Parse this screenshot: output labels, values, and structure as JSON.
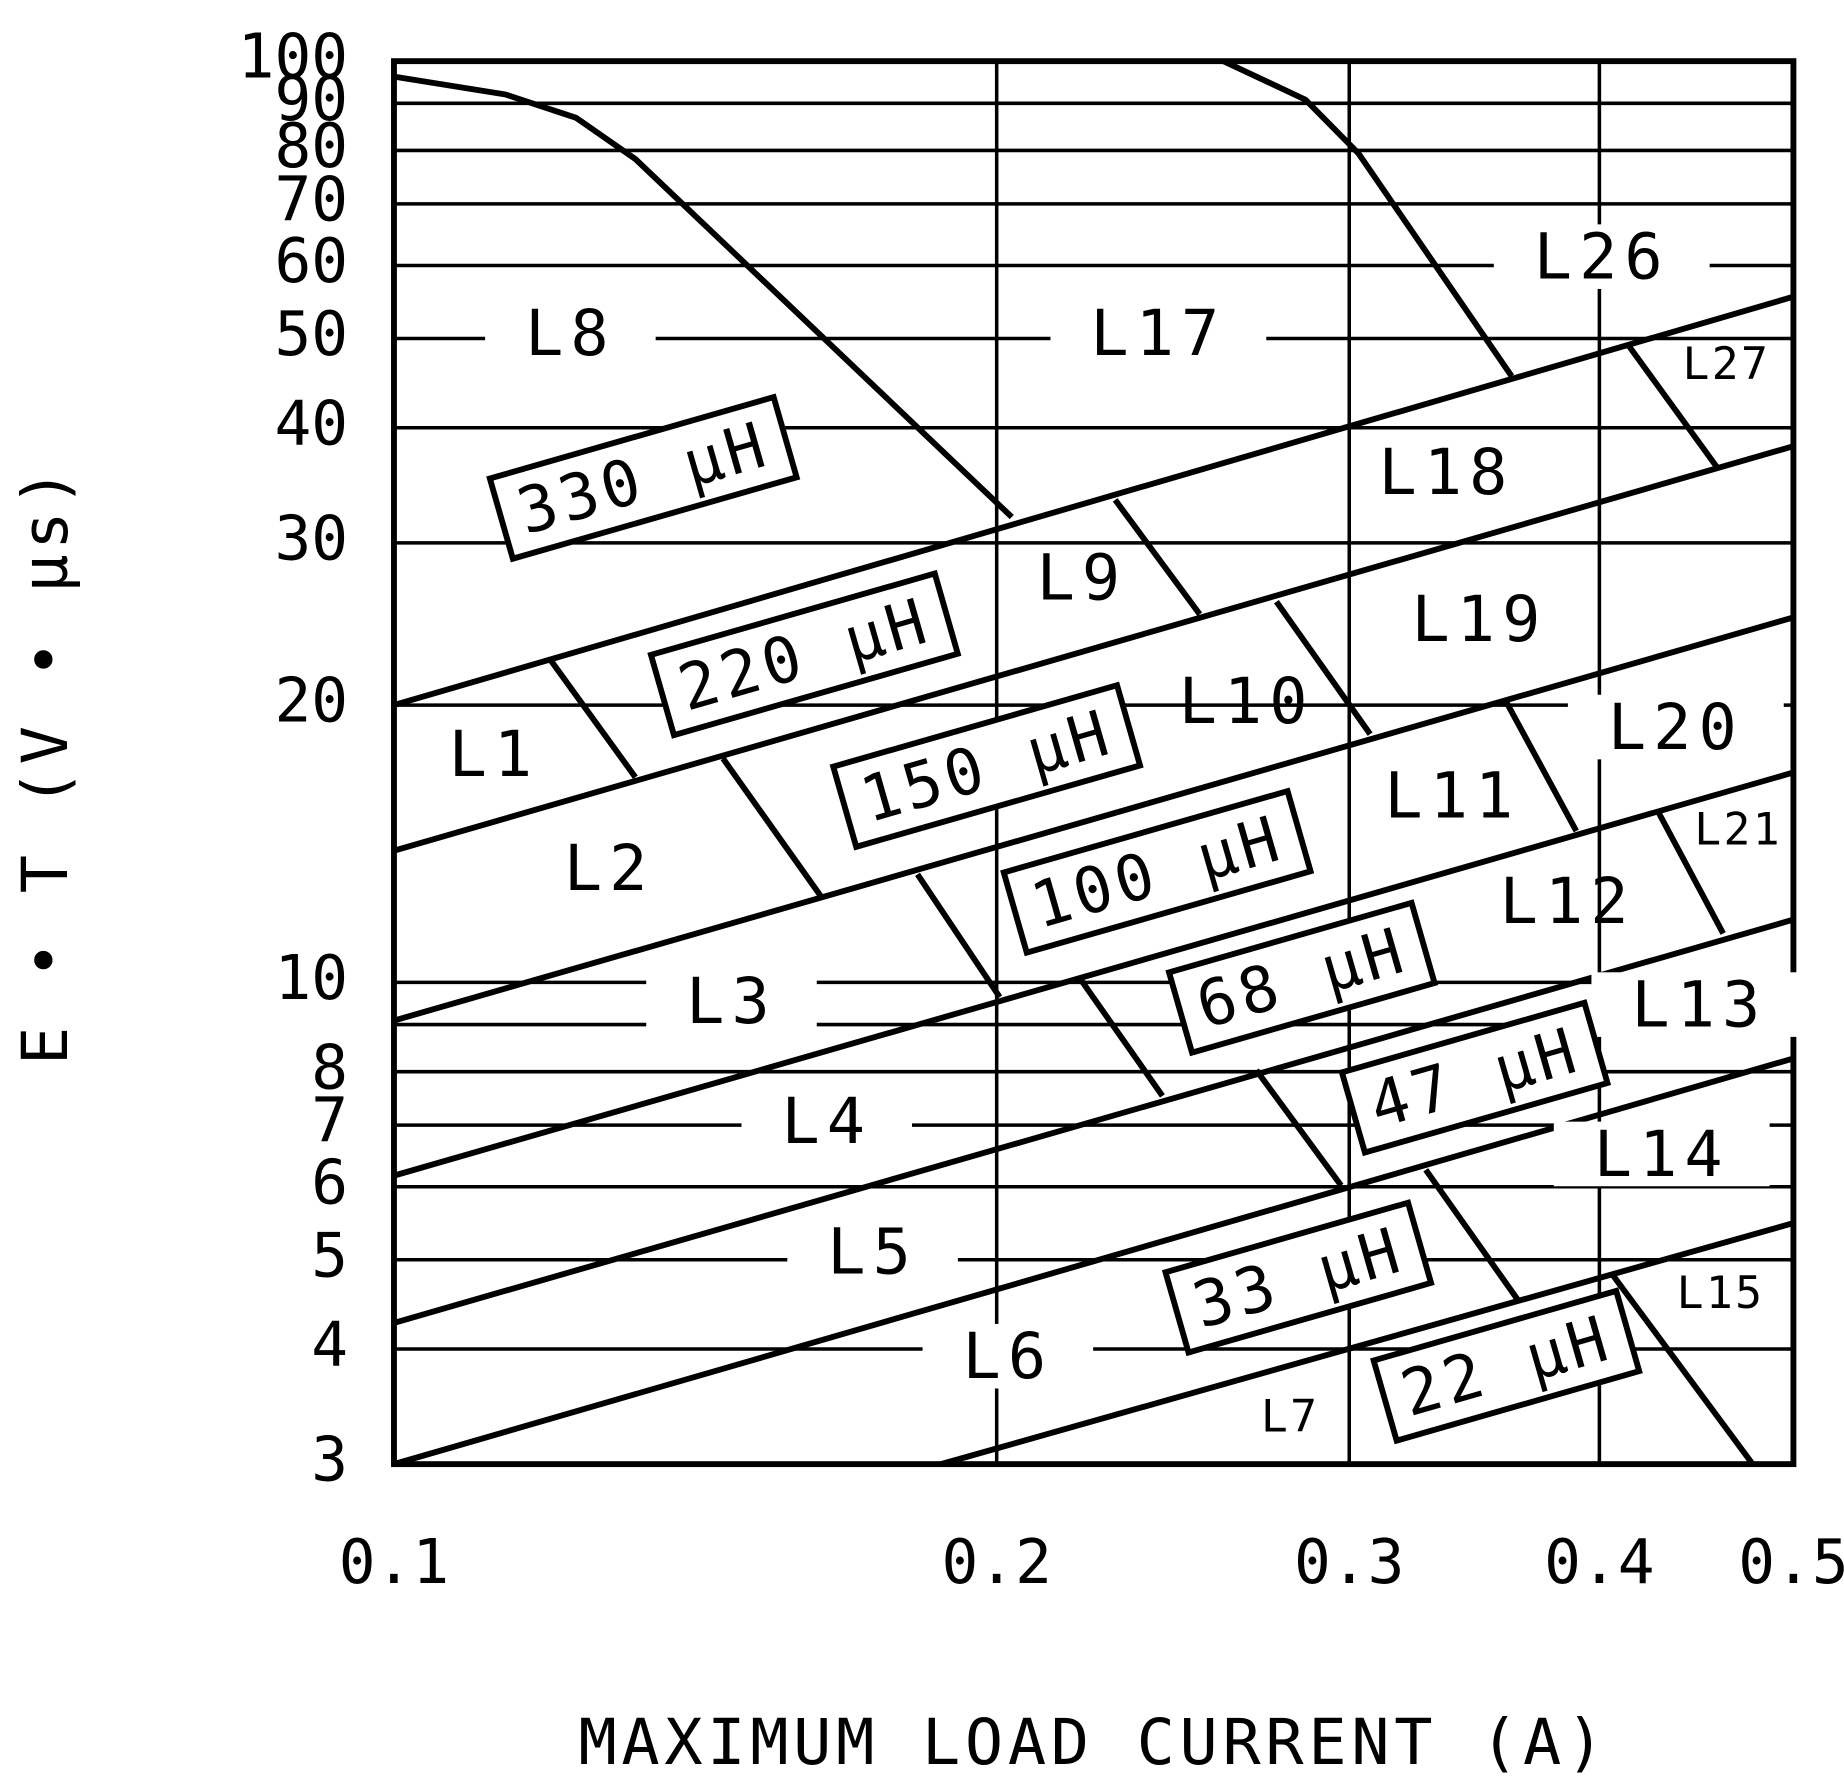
{
  "chart_data": {
    "type": "line",
    "x_label": "MAXIMUM LOAD CURRENT (A)",
    "y_label": "E • T (V • µs)",
    "log_x": true,
    "log_y": true,
    "grid": true,
    "color": "#000000",
    "xlim": [
      0.1,
      0.5
    ],
    "ylim": [
      3,
      100
    ],
    "xticks": [
      0.1,
      0.2,
      0.3,
      0.4,
      0.5
    ],
    "yticks": [
      3,
      4,
      5,
      6,
      7,
      8,
      10,
      20,
      30,
      40,
      50,
      60,
      70,
      80,
      90,
      100
    ],
    "y_minor_grid": [
      9
    ],
    "series": [
      {
        "x": [
          0.1,
          0.5
        ],
        "values": [
          20,
          55.5
        ]
      },
      {
        "x": [
          0.1,
          0.5
        ],
        "values": [
          13.9,
          38.2
        ]
      },
      {
        "x": [
          0.1,
          0.5
        ],
        "values": [
          9.09,
          24.9
        ]
      },
      {
        "x": [
          0.1,
          0.5
        ],
        "values": [
          6.17,
          16.9
        ]
      },
      {
        "x": [
          0.1,
          0.5
        ],
        "values": [
          4.27,
          11.7
        ]
      },
      {
        "x": [
          0.1,
          0.5
        ],
        "values": [
          3,
          8.27
        ]
      },
      {
        "x": [
          0.1876,
          0.5
        ],
        "values": [
          3,
          5.48
        ]
      },
      {
        "x": [
          0.1,
          0.1137,
          0.1233,
          0.132,
          0.2035
        ],
        "values": [
          96.2,
          92.0,
          86.8,
          78.3,
          32.0
        ]
      },
      {
        "x": [
          0.2596,
          0.2853,
          0.3032,
          0.3616
        ],
        "values": [
          100,
          90.8,
          79.4,
          45.5
        ]
      },
      {
        "x": [
          0.1197,
          0.132
        ],
        "values": [
          22.4,
          16.7
        ]
      },
      {
        "x": [
          0.146,
          0.1634
        ],
        "values": [
          17.5,
          12.4
        ]
      },
      {
        "x": [
          0.1826,
          0.2007
        ],
        "values": [
          13.1,
          9.64
        ]
      },
      {
        "x": [
          0.2201,
          0.242
        ],
        "values": [
          10.1,
          7.53
        ]
      },
      {
        "x": [
          0.2696,
          0.2972
        ],
        "values": [
          8.03,
          6.02
        ]
      },
      {
        "x": [
          0.3276,
          0.364
        ],
        "values": [
          6.26,
          4.53
        ]
      },
      {
        "x": [
          0.4057,
          0.4771
        ],
        "values": [
          4.83,
          3
        ]
      },
      {
        "x": [
          0.2292,
          0.2526
        ],
        "values": [
          33.4,
          25.1
        ]
      },
      {
        "x": [
          0.2759,
          0.3073
        ],
        "values": [
          25.9,
          18.6
        ]
      },
      {
        "x": [
          0.3592,
          0.3895
        ],
        "values": [
          20.2,
          14.6
        ]
      },
      {
        "x": [
          0.4281,
          0.4612
        ],
        "values": [
          15.3,
          11.3
        ]
      },
      {
        "x": [
          0.414,
          0.4581
        ],
        "values": [
          49.0,
          36.2
        ]
      }
    ],
    "region_labels": [
      "L1",
      "L2",
      "L3",
      "L4",
      "L5",
      "L6",
      "L7",
      "L8",
      "L9",
      "L10",
      "L11",
      "L12",
      "L13",
      "L14",
      "L15",
      "L17",
      "L18",
      "L19",
      "L20",
      "L21",
      "L26",
      "L27"
    ],
    "inductance_labels": [
      "330 µH",
      "220 µH",
      "150 µH",
      "100 µH",
      "68 µH",
      "47 µH",
      "33 µH",
      "22 µH"
    ]
  }
}
